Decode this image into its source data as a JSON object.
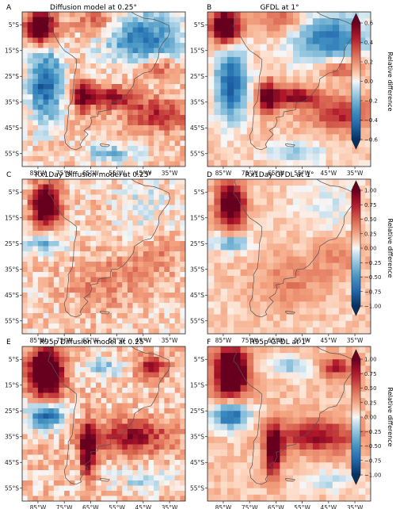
{
  "chart_data": [
    {
      "type": "heatmap",
      "letter": "A",
      "title": "Diffusion model at 0.25°",
      "colorbar": "cb1",
      "resolution": "fine",
      "variant": "mean"
    },
    {
      "type": "heatmap",
      "letter": "B",
      "title": "GFDL at 1°",
      "colorbar": "cb1",
      "resolution": "coarse",
      "variant": "mean"
    },
    {
      "type": "heatmap",
      "letter": "C",
      "title": "Rx1Day Diffusion model at 0.25°",
      "colorbar": "cb2",
      "resolution": "fine",
      "variant": "rx1day"
    },
    {
      "type": "heatmap",
      "letter": "D",
      "title": "Rx1Day GFDL at 1°",
      "colorbar": "cb2",
      "resolution": "coarse",
      "variant": "rx1day"
    },
    {
      "type": "heatmap",
      "letter": "E",
      "title": "R95p Diffusion model at 0.25°",
      "colorbar": "cb3",
      "resolution": "fine",
      "variant": "r95p"
    },
    {
      "type": "heatmap",
      "letter": "F",
      "title": "R95p GFDL at 1°",
      "colorbar": "cb3",
      "resolution": "coarse",
      "variant": "r95p"
    }
  ],
  "axes": {
    "xticks": [
      "85°W",
      "75°W",
      "65°W",
      "55°W",
      "45°W",
      "35°W"
    ],
    "yticks": [
      "5°S",
      "15°S",
      "25°S",
      "35°S",
      "45°S",
      "55°S"
    ]
  },
  "colorbars": [
    {
      "id": "cb1",
      "label": "Relative difference",
      "range": [
        -0.6,
        0.6
      ],
      "ticks": [
        "0.6",
        "0.4",
        "0.2",
        "0.0",
        "−0.2",
        "−0.4",
        "−0.6"
      ]
    },
    {
      "id": "cb2",
      "label": "Relative difference",
      "range": [
        -1.0,
        1.0
      ],
      "ticks": [
        "1.00",
        "0.75",
        "0.50",
        "0.25",
        "0.00",
        "−0.25",
        "−0.50",
        "−0.75",
        "−1.00"
      ]
    },
    {
      "id": "cb3",
      "label": "Relative difference",
      "range": [
        -1.0,
        1.0
      ],
      "ticks": [
        "1.00",
        "0.75",
        "0.50",
        "0.25",
        "0.00",
        "−0.25",
        "−0.50",
        "−0.75",
        "−1.00"
      ]
    }
  ],
  "colormap": {
    "name": "RdBu_r",
    "low": "#08306b",
    "mid": "#f7f7f7",
    "high": "#67000d"
  },
  "coastline_color": "#555555"
}
